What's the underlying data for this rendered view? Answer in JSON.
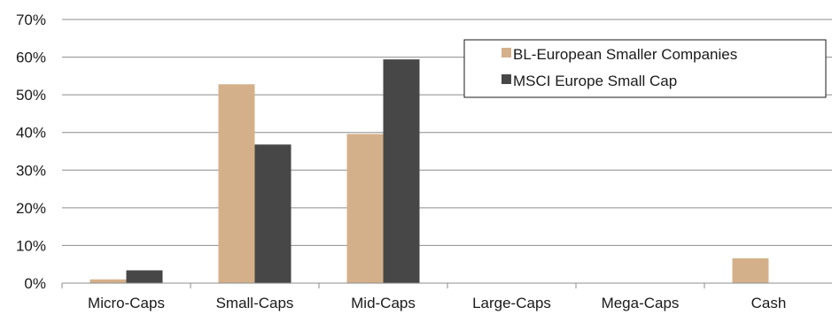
{
  "chart_data": {
    "type": "bar",
    "categories": [
      "Micro-Caps",
      "Small-Caps",
      "Mid-Caps",
      "Large-Caps",
      "Mega-Caps",
      "Cash"
    ],
    "series": [
      {
        "name": "BL-European Smaller Companies",
        "values": [
          1.0,
          52.8,
          39.6,
          0,
          0,
          6.6
        ],
        "color": "#d4b08a"
      },
      {
        "name": "MSCI Europe Small Cap",
        "values": [
          3.4,
          36.8,
          59.4,
          0,
          0,
          0
        ],
        "color": "#474747"
      }
    ],
    "y_ticks": [
      "0%",
      "10%",
      "20%",
      "30%",
      "40%",
      "50%",
      "60%",
      "70%"
    ],
    "ylim": [
      0,
      70
    ],
    "grid": true,
    "legend_position": "top-right",
    "title": "",
    "xlabel": "",
    "ylabel": ""
  }
}
